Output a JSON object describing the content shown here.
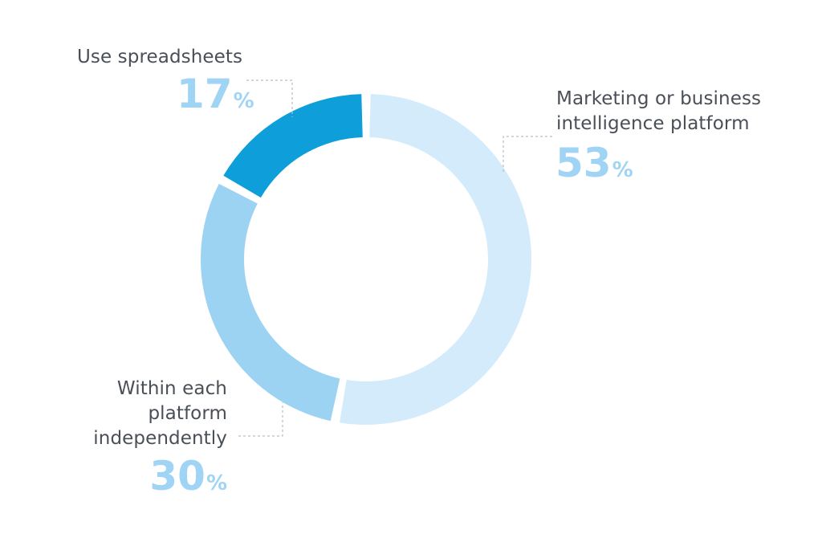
{
  "chart_data": {
    "type": "pie",
    "variant": "donut",
    "unit": "%",
    "slices": [
      {
        "label": "Marketing or business intelligence platform",
        "value": 53,
        "color": "#d3ebfb"
      },
      {
        "label": "Within each platform independently",
        "value": 30,
        "color": "#9cd3f3"
      },
      {
        "label": "Use spreadsheets",
        "value": 17,
        "color": "#0e9fda"
      }
    ]
  },
  "labels": {
    "spreadsheets": {
      "line1": "Use spreadsheets",
      "value": "17",
      "unit": "%"
    },
    "marketing": {
      "line1": "Marketing or business",
      "line2": "intelligence platform",
      "value": "53",
      "unit": "%"
    },
    "within": {
      "line1": "Within each",
      "line2": "platform",
      "line3": "independently",
      "value": "30",
      "unit": "%"
    }
  },
  "colors": {
    "label_text": "#4a4f57",
    "value_text": "#9fd4f5",
    "leader_line": "#b9bdc2"
  }
}
